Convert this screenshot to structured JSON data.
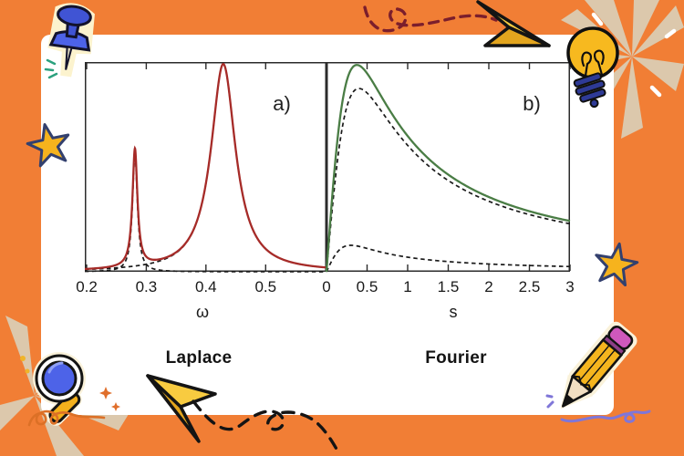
{
  "palette": {
    "background_orange": "#F17E35",
    "card_white": "#FFFFFF",
    "beige_burst": "#DCC8AC",
    "red_curve": "#A62B28",
    "green_curve": "#4A7D45",
    "dashed_black": "#1A1A1A",
    "frame_gray": "#2B2B2B",
    "maroon_dash_trail": "#7B1E2C",
    "black_dash_trail": "#141414",
    "yellow_accent": "#F6B31D",
    "blue_accent": "#4257D8",
    "pink_eraser": "#CF58BC",
    "purple_squiggle": "#7F76D8",
    "teal_sparkle": "#2BA17E",
    "orange_sparkle": "#E06F2B"
  },
  "chart_data": [
    {
      "type": "line",
      "panel_label": "a)",
      "caption": "Laplace",
      "xlabel": "ω",
      "xlim": [
        0.197,
        0.602
      ],
      "ylim": [
        0,
        0.98
      ],
      "xtick_values": [
        0.2,
        0.3,
        0.4,
        0.5
      ],
      "xtick_labels": [
        "0.2",
        "0.3",
        "0.4",
        "0.5"
      ],
      "grid": false,
      "legend": null,
      "series": [
        {
          "name": "narrow-lorentzian-component",
          "style": "dashed",
          "color": "#1A1A1A",
          "model": "lorentzian_sum",
          "components": [
            {
              "center": 0.281,
              "hwhm": 0.005,
              "amplitude": 0.55
            }
          ],
          "peaks": [
            {
              "x": 0.281,
              "y": 0.55
            }
          ]
        },
        {
          "name": "broad-lorentzian-component",
          "style": "dashed",
          "color": "#1A1A1A",
          "model": "lorentzian_sum",
          "components": [
            {
              "center": 0.429,
              "hwhm": 0.025,
              "amplitude": 0.97
            }
          ],
          "peaks": [
            {
              "x": 0.429,
              "y": 0.97
            }
          ]
        },
        {
          "name": "total-spectrum",
          "style": "solid",
          "color": "#A62B28",
          "model": "lorentzian_sum",
          "components": [
            {
              "center": 0.281,
              "hwhm": 0.005,
              "amplitude": 0.55
            },
            {
              "center": 0.429,
              "hwhm": 0.025,
              "amplitude": 0.97
            }
          ],
          "peaks": [
            {
              "x": 0.281,
              "y": 0.58
            },
            {
              "x": 0.429,
              "y": 0.97
            }
          ]
        }
      ]
    },
    {
      "type": "line",
      "panel_label": "b)",
      "caption": "Fourier",
      "xlabel": "s",
      "xlim": [
        0,
        3
      ],
      "ylim": [
        0,
        1.03
      ],
      "xtick_values": [
        0,
        0.5,
        1,
        1.5,
        2,
        2.5,
        3
      ],
      "xtick_labels": [
        "0",
        "0.5",
        "1",
        "1.5",
        "2",
        "2.5",
        "3"
      ],
      "grid": false,
      "legend": null,
      "series": [
        {
          "name": "large-component",
          "style": "dashed",
          "color": "#1A1A1A",
          "model": "rational_peak",
          "a": 0.72,
          "c": 0.16,
          "peaks": [
            {
              "x": 0.4,
              "y": 0.9
            }
          ]
        },
        {
          "name": "small-component",
          "style": "dashed",
          "color": "#1A1A1A",
          "model": "rational_peak",
          "a": 0.078,
          "c": 0.09,
          "peaks": [
            {
              "x": 0.3,
              "y": 0.13
            }
          ]
        },
        {
          "name": "total-spectrum",
          "style": "solid",
          "color": "#4A7D45",
          "model": "rational_peak",
          "a": 0.76,
          "c": 0.14,
          "peaks": [
            {
              "x": 0.37,
              "y": 1.0
            }
          ]
        }
      ]
    }
  ],
  "decorations": {
    "items": [
      "pushpin",
      "teal-sparkles",
      "dashed-trail-top",
      "paper-airplane-top",
      "light-bulb",
      "starburst-top-right",
      "white-sparkles",
      "star-left",
      "star-right",
      "magnifying-glass",
      "orange-sparkles",
      "orange-squiggle",
      "starburst-bottom-left",
      "paper-airplane-bottom",
      "dashed-trail-bottom",
      "pencil",
      "purple-sparkles",
      "purple-squiggle"
    ]
  }
}
